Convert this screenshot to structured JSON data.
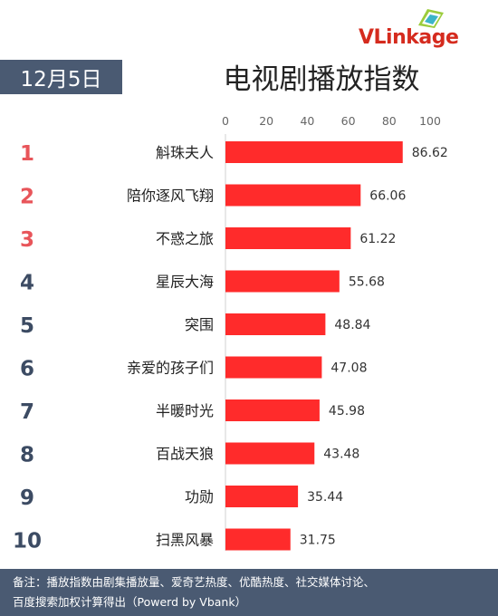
{
  "header": {
    "date": "12月5日",
    "title": "电视剧播放指数",
    "logo": "VLinkage"
  },
  "footer": {
    "note_line1": "备注：播放指数由剧集播放量、爱奇艺热度、优酷热度、社交媒体讨论、",
    "note_line2": "百度搜索加权计算得出（Powerd by Vbank）"
  },
  "colors": {
    "bar": "#ff2b2b",
    "rank_top": "#e8555a",
    "rank_other": "#3c4b63",
    "banner": "#4a5a72"
  },
  "chart_data": {
    "type": "bar",
    "orientation": "horizontal",
    "title": "电视剧播放指数",
    "categories": [
      "斛珠夫人",
      "陪你逐风飞翔",
      "不惑之旅",
      "星辰大海",
      "突围",
      "亲爱的孩子们",
      "半暖时光",
      "百战天狼",
      "功勋",
      "扫黑风暴"
    ],
    "ranks": [
      "1",
      "2",
      "3",
      "4",
      "5",
      "6",
      "7",
      "8",
      "9",
      "10"
    ],
    "values": [
      86.62,
      66.06,
      61.22,
      55.68,
      48.84,
      47.08,
      45.98,
      43.48,
      35.44,
      31.75
    ],
    "value_labels": [
      "86.62",
      "66.06",
      "61.22",
      "55.68",
      "48.84",
      "47.08",
      "45.98",
      "43.48",
      "35.44",
      "31.75"
    ],
    "xlim": [
      0,
      100
    ],
    "xticks": [
      "0",
      "20",
      "40",
      "60",
      "80",
      "100"
    ],
    "xtick_values": [
      0,
      20,
      40,
      60,
      80,
      100
    ],
    "axis_position": "top",
    "grid": false
  }
}
